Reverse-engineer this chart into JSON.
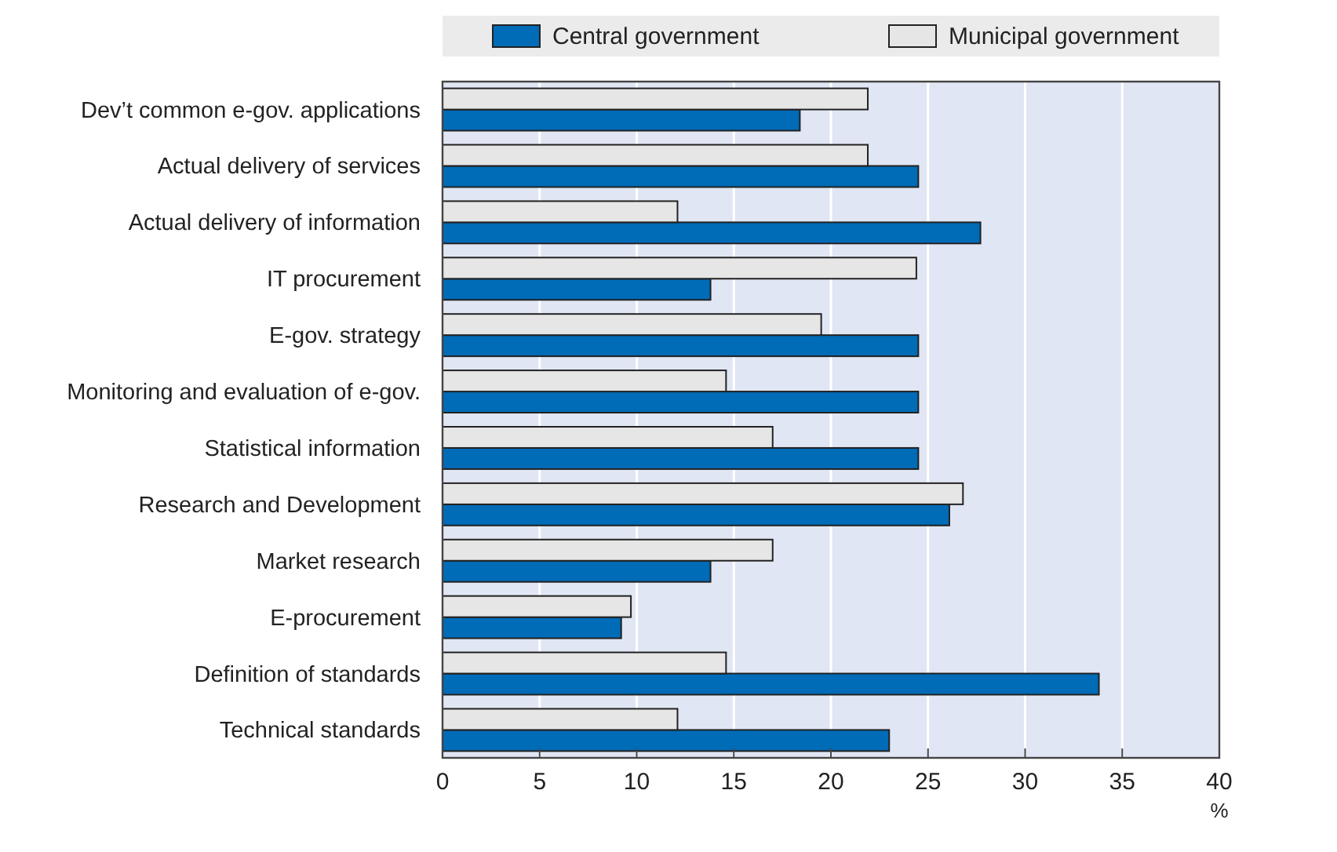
{
  "chart_data": {
    "type": "bar",
    "orientation": "horizontal",
    "xlabel": "%",
    "categories": [
      "Dev’t common e-gov. applications",
      "Actual delivery of services",
      "Actual delivery of information",
      "IT procurement",
      "E-gov. strategy",
      "Monitoring and evaluation of e-gov.",
      "Statistical information",
      "Research and Development",
      "Market research",
      "E-procurement",
      "Definition of standards",
      "Technical standards"
    ],
    "series": [
      {
        "name": "Central government",
        "color": "#006bb6",
        "values": [
          18.4,
          24.5,
          27.7,
          13.8,
          24.5,
          24.5,
          24.5,
          26.1,
          13.8,
          9.2,
          33.8,
          23.0
        ]
      },
      {
        "name": "Municipal government",
        "color": "#e6e6e6",
        "values": [
          21.9,
          21.9,
          12.1,
          24.4,
          19.5,
          14.6,
          17.0,
          26.8,
          17.0,
          9.7,
          14.6,
          12.1
        ]
      }
    ],
    "xlim": [
      0,
      40
    ],
    "xticks": [
      0,
      5,
      10,
      15,
      20,
      25,
      30,
      35,
      40
    ],
    "grid": "x",
    "legend": "top"
  }
}
